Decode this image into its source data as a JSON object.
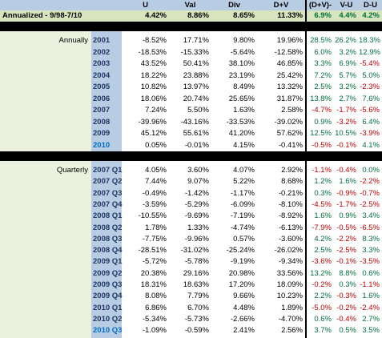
{
  "header": {
    "columns": [
      "U",
      "Val",
      "Div",
      "D+V",
      "(D+V)-U",
      "V-U",
      "D-U"
    ]
  },
  "summary": {
    "label": "Annualized - 9/98-7/10",
    "values": [
      "4.42%",
      "8.86%",
      "8.65%",
      "11.33%"
    ],
    "diffs": [
      "6.9%",
      "4.4%",
      "4.2%"
    ]
  },
  "annual": {
    "label": "Annually",
    "rows": [
      {
        "period": "2001",
        "u": "-8.52%",
        "val": "17.71%",
        "div": "9.80%",
        "dv": "19.96%",
        "d1": "28.5%",
        "d2": "26.2%",
        "d3": "18.3%",
        "s1": "pos",
        "s2": "pos",
        "s3": "pos"
      },
      {
        "period": "2002",
        "u": "-18.53%",
        "val": "-15.33%",
        "div": "-5.64%",
        "dv": "-12.58%",
        "d1": "6.0%",
        "d2": "3.2%",
        "d3": "12.9%",
        "s1": "pos",
        "s2": "pos",
        "s3": "pos"
      },
      {
        "period": "2003",
        "u": "43.52%",
        "val": "50.41%",
        "div": "38.10%",
        "dv": "46.85%",
        "d1": "3.3%",
        "d2": "6.9%",
        "d3": "-5.4%",
        "s1": "pos",
        "s2": "pos",
        "s3": "neg"
      },
      {
        "period": "2004",
        "u": "18.22%",
        "val": "23.88%",
        "div": "23.19%",
        "dv": "25.42%",
        "d1": "7.2%",
        "d2": "5.7%",
        "d3": "5.0%",
        "s1": "pos",
        "s2": "pos",
        "s3": "pos"
      },
      {
        "period": "2005",
        "u": "10.82%",
        "val": "13.97%",
        "div": "8.49%",
        "dv": "13.32%",
        "d1": "2.5%",
        "d2": "3.2%",
        "d3": "-2.3%",
        "s1": "pos",
        "s2": "pos",
        "s3": "neg"
      },
      {
        "period": "2006",
        "u": "18.06%",
        "val": "20.74%",
        "div": "25.65%",
        "dv": "31.87%",
        "d1": "13.8%",
        "d2": "2.7%",
        "d3": "7.6%",
        "s1": "pos",
        "s2": "pos",
        "s3": "pos"
      },
      {
        "period": "2007",
        "u": "7.24%",
        "val": "5.50%",
        "div": "1.63%",
        "dv": "2.58%",
        "d1": "-4.7%",
        "d2": "-1.7%",
        "d3": "-5.6%",
        "s1": "neg",
        "s2": "neg",
        "s3": "neg"
      },
      {
        "period": "2008",
        "u": "-39.96%",
        "val": "-43.16%",
        "div": "-33.53%",
        "dv": "-39.02%",
        "d1": "0.9%",
        "d2": "-3.2%",
        "d3": "6.4%",
        "s1": "pos",
        "s2": "neg",
        "s3": "pos"
      },
      {
        "period": "2009",
        "u": "45.12%",
        "val": "55.61%",
        "div": "41.20%",
        "dv": "57.62%",
        "d1": "12.5%",
        "d2": "10.5%",
        "d3": "-3.9%",
        "s1": "pos",
        "s2": "pos",
        "s3": "neg"
      },
      {
        "period": "2010",
        "u": "0.05%",
        "val": "-0.01%",
        "div": "4.15%",
        "dv": "-0.41%",
        "d1": "-0.5%",
        "d2": "-0.1%",
        "d3": "4.1%",
        "s1": "neg",
        "s2": "neg",
        "s3": "pos",
        "highlight": true
      }
    ]
  },
  "quarterly": {
    "label": "Quarterly",
    "rows": [
      {
        "period": "2007 Q1",
        "u": "4.05%",
        "val": "3.60%",
        "div": "4.07%",
        "dv": "2.92%",
        "d1": "-1.1%",
        "d2": "-0.4%",
        "d3": "0.0%",
        "s1": "neg",
        "s2": "neg",
        "s3": "pos"
      },
      {
        "period": "2007 Q2",
        "u": "7.44%",
        "val": "9.07%",
        "div": "5.22%",
        "dv": "8.68%",
        "d1": "1.2%",
        "d2": "1.6%",
        "d3": "-2.2%",
        "s1": "pos",
        "s2": "pos",
        "s3": "neg"
      },
      {
        "period": "2007 Q3",
        "u": "-0.49%",
        "val": "-1.42%",
        "div": "-1.17%",
        "dv": "-0.21%",
        "d1": "0.3%",
        "d2": "-0.9%",
        "d3": "-0.7%",
        "s1": "pos",
        "s2": "neg",
        "s3": "neg"
      },
      {
        "period": "2007 Q4",
        "u": "-3.59%",
        "val": "-5.29%",
        "div": "-6.09%",
        "dv": "-8.10%",
        "d1": "-4.5%",
        "d2": "-1.7%",
        "d3": "-2.5%",
        "s1": "neg",
        "s2": "neg",
        "s3": "neg"
      },
      {
        "period": "2008 Q1",
        "u": "-10.55%",
        "val": "-9.69%",
        "div": "-7.19%",
        "dv": "-8.92%",
        "d1": "1.6%",
        "d2": "0.9%",
        "d3": "3.4%",
        "s1": "pos",
        "s2": "pos",
        "s3": "pos"
      },
      {
        "period": "2008 Q2",
        "u": "1.78%",
        "val": "1.33%",
        "div": "-4.74%",
        "dv": "-6.13%",
        "d1": "-7.9%",
        "d2": "-0.5%",
        "d3": "-6.5%",
        "s1": "neg",
        "s2": "neg",
        "s3": "neg"
      },
      {
        "period": "2008 Q3",
        "u": "-7.75%",
        "val": "-9.96%",
        "div": "0.57%",
        "dv": "-3.60%",
        "d1": "4.2%",
        "d2": "-2.2%",
        "d3": "8.3%",
        "s1": "pos",
        "s2": "neg",
        "s3": "pos"
      },
      {
        "period": "2008 Q4",
        "u": "-28.51%",
        "val": "-31.02%",
        "div": "-25.24%",
        "dv": "-26.02%",
        "d1": "2.5%",
        "d2": "-2.5%",
        "d3": "3.3%",
        "s1": "pos",
        "s2": "neg",
        "s3": "pos"
      },
      {
        "period": "2009 Q1",
        "u": "-5.72%",
        "val": "-5.78%",
        "div": "-9.19%",
        "dv": "-9.34%",
        "d1": "-3.6%",
        "d2": "-0.1%",
        "d3": "-3.5%",
        "s1": "neg",
        "s2": "neg",
        "s3": "neg"
      },
      {
        "period": "2009 Q2",
        "u": "20.38%",
        "val": "29.16%",
        "div": "20.98%",
        "dv": "33.56%",
        "d1": "13.2%",
        "d2": "8.8%",
        "d3": "0.6%",
        "s1": "pos",
        "s2": "pos",
        "s3": "pos"
      },
      {
        "period": "2009 Q3",
        "u": "18.31%",
        "val": "18.63%",
        "div": "17.20%",
        "dv": "18.09%",
        "d1": "-0.2%",
        "d2": "0.3%",
        "d3": "-1.1%",
        "s1": "neg",
        "s2": "pos",
        "s3": "neg"
      },
      {
        "period": "2009 Q4",
        "u": "8.08%",
        "val": "7.79%",
        "div": "9.66%",
        "dv": "10.23%",
        "d1": "2.2%",
        "d2": "-0.3%",
        "d3": "1.6%",
        "s1": "pos",
        "s2": "neg",
        "s3": "pos"
      },
      {
        "period": "2010 Q1",
        "u": "6.86%",
        "val": "6.70%",
        "div": "4.48%",
        "dv": "1.89%",
        "d1": "-5.0%",
        "d2": "-0.2%",
        "d3": "-2.4%",
        "s1": "neg",
        "s2": "neg",
        "s3": "neg"
      },
      {
        "period": "2010 Q2",
        "u": "-5.34%",
        "val": "-5.73%",
        "div": "-2.66%",
        "dv": "-4.70%",
        "d1": "0.6%",
        "d2": "-0.4%",
        "d3": "2.7%",
        "s1": "pos",
        "s2": "neg",
        "s3": "pos"
      },
      {
        "period": "2010 Q3",
        "u": "-1.09%",
        "val": "-0.59%",
        "div": "2.41%",
        "dv": "2.56%",
        "d1": "3.7%",
        "d2": "0.5%",
        "d3": "3.5%",
        "s1": "pos",
        "s2": "pos",
        "s3": "pos",
        "highlight": true
      }
    ]
  },
  "colors": {
    "header_blue": "#b8cce4",
    "summary_green": "#d7e4bd",
    "label_green": "#ebf1de",
    "positive": "#00703c",
    "negative": "#c00000",
    "highlight": "#0070c0"
  }
}
